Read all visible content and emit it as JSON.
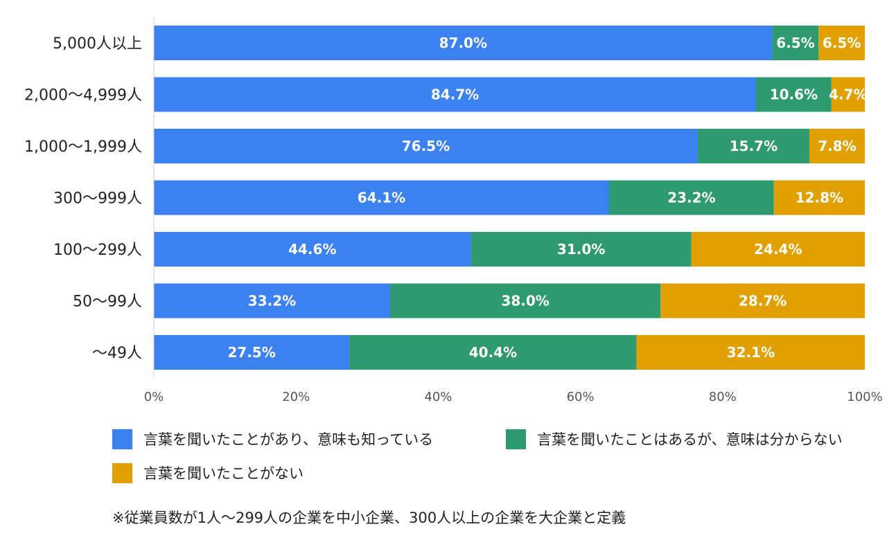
{
  "chart_data": {
    "type": "bar",
    "orientation": "horizontal",
    "stacked": true,
    "categories": [
      "5,000人以上",
      "2,000〜4,999人",
      "1,000〜1,999人",
      "300〜999人",
      "100〜299人",
      "50〜99人",
      "〜49人"
    ],
    "series": [
      {
        "name": "言葉を聞いたことがあり、意味も知っている",
        "color": "#3B82F0",
        "values": [
          87.0,
          84.7,
          76.5,
          64.1,
          44.6,
          33.2,
          27.5
        ],
        "labels": [
          "87.0%",
          "84.7%",
          "76.5%",
          "64.1%",
          "44.6%",
          "33.2%",
          "27.5%"
        ]
      },
      {
        "name": "言葉を聞いたことはあるが、意味は分からない",
        "color": "#2E9A6E",
        "values": [
          6.5,
          10.6,
          15.7,
          23.2,
          31.0,
          38.0,
          40.4
        ],
        "labels": [
          "6.5%",
          "10.6%",
          "15.7%",
          "23.2%",
          "31.0%",
          "38.0%",
          "40.4%"
        ]
      },
      {
        "name": "言葉を聞いたことがない",
        "color": "#E0A000",
        "values": [
          6.5,
          4.7,
          7.8,
          12.8,
          24.4,
          28.7,
          32.1
        ],
        "labels": [
          "6.5%",
          "4.7%",
          "7.8%",
          "12.8%",
          "24.4%",
          "28.7%",
          "32.1%"
        ]
      }
    ],
    "xlim": [
      0,
      100
    ],
    "x_ticks": [
      "0%",
      "20%",
      "40%",
      "60%",
      "80%",
      "100%"
    ],
    "grid": false,
    "legend_position": "bottom",
    "title": "",
    "xlabel": "",
    "ylabel": ""
  },
  "footnote": "※従業員数が1人〜299人の企業を中小企業、300人以上の企業を大企業と定義"
}
